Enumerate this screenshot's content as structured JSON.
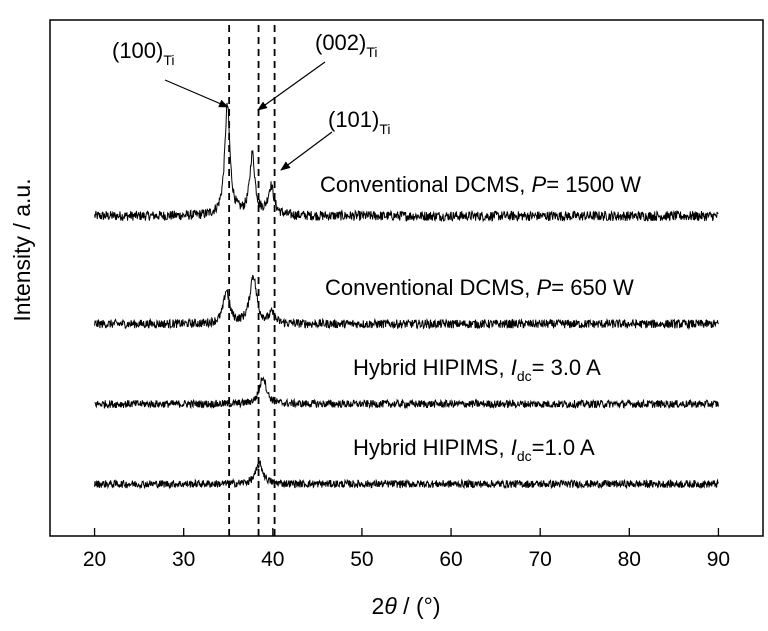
{
  "chart_data": {
    "type": "line",
    "xlabel": "2θ / (°)",
    "xlabel_parts": {
      "prefix": "2",
      "theta": "θ",
      "suffix": " / (°)"
    },
    "ylabel": "Intensity / a.u.",
    "xlim": [
      15,
      95
    ],
    "xticks": [
      20,
      30,
      40,
      50,
      60,
      70,
      80,
      90
    ],
    "yticks_shown": false,
    "reference_lines_2theta": [
      35.1,
      38.4,
      40.2
    ],
    "peak_annotations": [
      {
        "base": "(100)",
        "sub": "Ti",
        "target_2theta": 35.1
      },
      {
        "base": "(002)",
        "sub": "Ti",
        "target_2theta": 38.4
      },
      {
        "base": "(101)",
        "sub": "Ti",
        "target_2theta": 40.2
      }
    ],
    "series": [
      {
        "name": "Conventional DCMS, P= 1500 W",
        "label_parts": {
          "a": "Conventional DCMS, ",
          "b": "P",
          "c": "= 1500 W",
          "sub": ""
        },
        "x_range": [
          20,
          90
        ],
        "baseline": 0,
        "noise": 9,
        "peaks": [
          {
            "x": 34.9,
            "height": 200,
            "width": 0.35
          },
          {
            "x": 37.7,
            "height": 110,
            "width": 0.35
          },
          {
            "x": 39.8,
            "height": 52,
            "width": 0.4
          }
        ]
      },
      {
        "name": "Conventional DCMS, P= 650 W",
        "label_parts": {
          "a": "Conventional DCMS, ",
          "b": "P",
          "c": "= 650 W",
          "sub": ""
        },
        "x_range": [
          20,
          90
        ],
        "baseline": 0,
        "noise": 8,
        "peaks": [
          {
            "x": 34.8,
            "height": 60,
            "width": 0.4
          },
          {
            "x": 37.8,
            "height": 88,
            "width": 0.45
          },
          {
            "x": 39.9,
            "height": 18,
            "width": 0.35
          }
        ]
      },
      {
        "name": "Hybrid HIPIMS, Idc= 3.0 A",
        "label_parts": {
          "a": "Hybrid HIPIMS, ",
          "b": "I",
          "c": "= 3.0 A",
          "sub": "dc"
        },
        "x_range": [
          20,
          90
        ],
        "baseline": 0,
        "noise": 7,
        "peaks": [
          {
            "x": 38.9,
            "height": 50,
            "width": 0.45
          }
        ]
      },
      {
        "name": "Hybrid HIPIMS, Idc=1.0 A",
        "label_parts": {
          "a": "Hybrid HIPIMS, ",
          "b": "I",
          "c": "=1.0 A",
          "sub": "dc"
        },
        "x_range": [
          20,
          90
        ],
        "baseline": 0,
        "noise": 7,
        "peaks": [
          {
            "x": 38.5,
            "height": 36,
            "width": 0.5
          }
        ]
      }
    ]
  }
}
